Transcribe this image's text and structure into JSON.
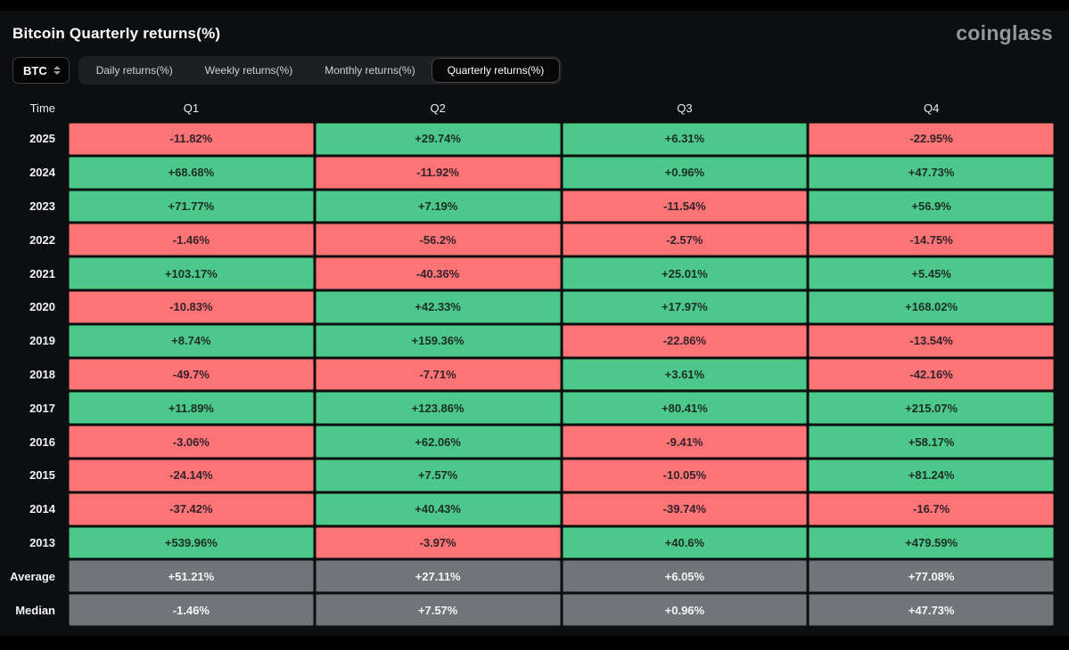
{
  "header": {
    "title": "Bitcoin Quarterly returns(%)",
    "logo": "coinglass"
  },
  "controls": {
    "symbol_select": {
      "value": "BTC"
    },
    "tabs": [
      {
        "label": "Daily returns(%)",
        "active": false
      },
      {
        "label": "Weekly returns(%)",
        "active": false
      },
      {
        "label": "Monthly returns(%)",
        "active": false
      },
      {
        "label": "Quarterly returns(%)",
        "active": true
      }
    ]
  },
  "colors": {
    "positive": "#4bc88a",
    "negative": "#fc7476",
    "neutral": "#71757a"
  },
  "table": {
    "columns": [
      "Time",
      "Q1",
      "Q2",
      "Q3",
      "Q4"
    ],
    "rows": [
      {
        "label": "2025",
        "cells": [
          {
            "value": "-11.82%",
            "state": "neg"
          },
          {
            "value": "+29.74%",
            "state": "pos"
          },
          {
            "value": "+6.31%",
            "state": "pos"
          },
          {
            "value": "-22.95%",
            "state": "neg"
          }
        ]
      },
      {
        "label": "2024",
        "cells": [
          {
            "value": "+68.68%",
            "state": "pos"
          },
          {
            "value": "-11.92%",
            "state": "neg"
          },
          {
            "value": "+0.96%",
            "state": "pos"
          },
          {
            "value": "+47.73%",
            "state": "pos"
          }
        ]
      },
      {
        "label": "2023",
        "cells": [
          {
            "value": "+71.77%",
            "state": "pos"
          },
          {
            "value": "+7.19%",
            "state": "pos"
          },
          {
            "value": "-11.54%",
            "state": "neg"
          },
          {
            "value": "+56.9%",
            "state": "pos"
          }
        ]
      },
      {
        "label": "2022",
        "cells": [
          {
            "value": "-1.46%",
            "state": "neg"
          },
          {
            "value": "-56.2%",
            "state": "neg"
          },
          {
            "value": "-2.57%",
            "state": "neg"
          },
          {
            "value": "-14.75%",
            "state": "neg"
          }
        ]
      },
      {
        "label": "2021",
        "cells": [
          {
            "value": "+103.17%",
            "state": "pos"
          },
          {
            "value": "-40.36%",
            "state": "neg"
          },
          {
            "value": "+25.01%",
            "state": "pos"
          },
          {
            "value": "+5.45%",
            "state": "pos"
          }
        ]
      },
      {
        "label": "2020",
        "cells": [
          {
            "value": "-10.83%",
            "state": "neg"
          },
          {
            "value": "+42.33%",
            "state": "pos"
          },
          {
            "value": "+17.97%",
            "state": "pos"
          },
          {
            "value": "+168.02%",
            "state": "pos"
          }
        ]
      },
      {
        "label": "2019",
        "cells": [
          {
            "value": "+8.74%",
            "state": "pos"
          },
          {
            "value": "+159.36%",
            "state": "pos"
          },
          {
            "value": "-22.86%",
            "state": "neg"
          },
          {
            "value": "-13.54%",
            "state": "neg"
          }
        ]
      },
      {
        "label": "2018",
        "cells": [
          {
            "value": "-49.7%",
            "state": "neg"
          },
          {
            "value": "-7.71%",
            "state": "neg"
          },
          {
            "value": "+3.61%",
            "state": "pos"
          },
          {
            "value": "-42.16%",
            "state": "neg"
          }
        ]
      },
      {
        "label": "2017",
        "cells": [
          {
            "value": "+11.89%",
            "state": "pos"
          },
          {
            "value": "+123.86%",
            "state": "pos"
          },
          {
            "value": "+80.41%",
            "state": "pos"
          },
          {
            "value": "+215.07%",
            "state": "pos"
          }
        ]
      },
      {
        "label": "2016",
        "cells": [
          {
            "value": "-3.06%",
            "state": "neg"
          },
          {
            "value": "+62.06%",
            "state": "pos"
          },
          {
            "value": "-9.41%",
            "state": "neg"
          },
          {
            "value": "+58.17%",
            "state": "pos"
          }
        ]
      },
      {
        "label": "2015",
        "cells": [
          {
            "value": "-24.14%",
            "state": "neg"
          },
          {
            "value": "+7.57%",
            "state": "pos"
          },
          {
            "value": "-10.05%",
            "state": "neg"
          },
          {
            "value": "+81.24%",
            "state": "pos"
          }
        ]
      },
      {
        "label": "2014",
        "cells": [
          {
            "value": "-37.42%",
            "state": "neg"
          },
          {
            "value": "+40.43%",
            "state": "pos"
          },
          {
            "value": "-39.74%",
            "state": "neg"
          },
          {
            "value": "-16.7%",
            "state": "neg"
          }
        ]
      },
      {
        "label": "2013",
        "cells": [
          {
            "value": "+539.96%",
            "state": "pos"
          },
          {
            "value": "-3.97%",
            "state": "neg"
          },
          {
            "value": "+40.6%",
            "state": "pos"
          },
          {
            "value": "+479.59%",
            "state": "pos"
          }
        ]
      },
      {
        "label": "Average",
        "cells": [
          {
            "value": "+51.21%",
            "state": "avg"
          },
          {
            "value": "+27.11%",
            "state": "avg"
          },
          {
            "value": "+6.05%",
            "state": "avg"
          },
          {
            "value": "+77.08%",
            "state": "avg"
          }
        ]
      },
      {
        "label": "Median",
        "cells": [
          {
            "value": "-1.46%",
            "state": "avg"
          },
          {
            "value": "+7.57%",
            "state": "avg"
          },
          {
            "value": "+0.96%",
            "state": "avg"
          },
          {
            "value": "+47.73%",
            "state": "avg"
          }
        ]
      }
    ]
  },
  "chart_data": {
    "type": "heatmap",
    "title": "Bitcoin Quarterly returns(%)",
    "units": "%",
    "columns": [
      "Q1",
      "Q2",
      "Q3",
      "Q4"
    ],
    "rows": [
      "2025",
      "2024",
      "2023",
      "2022",
      "2021",
      "2020",
      "2019",
      "2018",
      "2017",
      "2016",
      "2015",
      "2014",
      "2013",
      "Average",
      "Median"
    ],
    "values": [
      [
        -11.82,
        29.74,
        6.31,
        -22.95
      ],
      [
        68.68,
        -11.92,
        0.96,
        47.73
      ],
      [
        71.77,
        7.19,
        -11.54,
        56.9
      ],
      [
        -1.46,
        -56.2,
        -2.57,
        -14.75
      ],
      [
        103.17,
        -40.36,
        25.01,
        5.45
      ],
      [
        -10.83,
        42.33,
        17.97,
        168.02
      ],
      [
        8.74,
        159.36,
        -22.86,
        -13.54
      ],
      [
        -49.7,
        -7.71,
        3.61,
        -42.16
      ],
      [
        11.89,
        123.86,
        80.41,
        215.07
      ],
      [
        -3.06,
        62.06,
        -9.41,
        58.17
      ],
      [
        -24.14,
        7.57,
        -10.05,
        81.24
      ],
      [
        -37.42,
        40.43,
        -39.74,
        -16.7
      ],
      [
        539.96,
        -3.97,
        40.6,
        479.59
      ],
      [
        51.21,
        27.11,
        6.05,
        77.08
      ],
      [
        -1.46,
        7.57,
        0.96,
        47.73
      ]
    ],
    "legend": "green = positive return, red = negative return, gray = aggregate rows",
    "color_positive": "#4bc88a",
    "color_negative": "#fc7476",
    "color_neutral": "#71757a"
  }
}
